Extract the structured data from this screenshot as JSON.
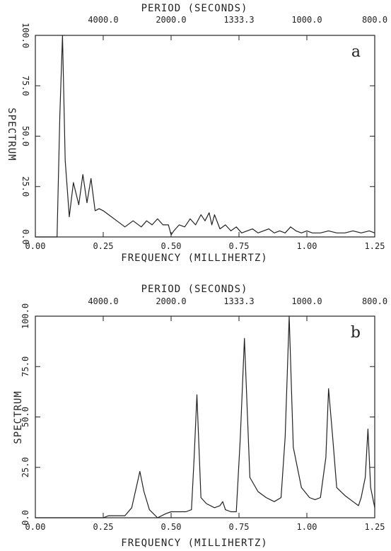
{
  "chart_data": [
    {
      "type": "line",
      "panel_label": "a",
      "xlabel": "FREQUENCY (MILLIHERTZ)",
      "ylabel": "SPECTRUM",
      "top_axis_label": "PERIOD (SECONDS)",
      "xlim": [
        0.0,
        1.25
      ],
      "ylim": [
        0.0,
        100.0
      ],
      "xticks": [
        0.0,
        0.25,
        0.5,
        0.75,
        1.0,
        1.25
      ],
      "xtick_labels": [
        "0.00",
        "0.25",
        "0.50",
        "0.75",
        "1.00",
        "1.25"
      ],
      "yticks": [
        0.0,
        25.0,
        50.0,
        75.0,
        100.0
      ],
      "ytick_labels": [
        "0.0",
        "25.0",
        "50.0",
        "75.0",
        "100.0"
      ],
      "period_ticks": [
        4000.0,
        2000.0,
        1333.3,
        1000.0,
        800.0
      ],
      "period_tick_labels": [
        "4000.0",
        "2000.0",
        "1333.3",
        "1000.0",
        "800.0"
      ],
      "grid": false,
      "series": [
        {
          "x": [
            0.0,
            0.08,
            0.09,
            0.1,
            0.11,
            0.125,
            0.14,
            0.16,
            0.175,
            0.19,
            0.205,
            0.22,
            0.235,
            0.25,
            0.27,
            0.3,
            0.33,
            0.36,
            0.39,
            0.41,
            0.43,
            0.45,
            0.47,
            0.49,
            0.5,
            0.51,
            0.53,
            0.55,
            0.57,
            0.59,
            0.61,
            0.625,
            0.64,
            0.65,
            0.66,
            0.68,
            0.7,
            0.72,
            0.74,
            0.76,
            0.78,
            0.8,
            0.82,
            0.84,
            0.86,
            0.88,
            0.9,
            0.92,
            0.94,
            0.96,
            0.98,
            1.0,
            1.02,
            1.05,
            1.08,
            1.11,
            1.14,
            1.17,
            1.2,
            1.23,
            1.25
          ],
          "y": [
            0.0,
            0.0,
            60.0,
            100.0,
            38.0,
            10.0,
            27.0,
            16.0,
            31.0,
            17.0,
            29.0,
            13.0,
            14.0,
            13.0,
            11.0,
            8.0,
            5.0,
            8.0,
            5.0,
            8.0,
            6.0,
            9.0,
            6.0,
            6.0,
            1.0,
            3.0,
            6.0,
            5.0,
            9.0,
            6.0,
            11.0,
            8.0,
            12.0,
            6.0,
            11.0,
            4.0,
            6.0,
            3.0,
            5.0,
            2.0,
            3.0,
            4.0,
            2.0,
            3.0,
            4.0,
            2.0,
            3.0,
            2.0,
            5.0,
            3.0,
            2.0,
            3.0,
            2.0,
            2.0,
            3.0,
            2.0,
            2.0,
            3.0,
            2.0,
            3.0,
            2.0
          ]
        }
      ]
    },
    {
      "type": "line",
      "panel_label": "b",
      "xlabel": "FREQUENCY (MILLIHERTZ)",
      "ylabel": "SPECTRUM",
      "top_axis_label": "PERIOD (SECONDS)",
      "xlim": [
        0.0,
        1.25
      ],
      "ylim": [
        0.0,
        100.0
      ],
      "xticks": [
        0.0,
        0.25,
        0.5,
        0.75,
        1.0,
        1.25
      ],
      "xtick_labels": [
        "0.00",
        "0.25",
        "0.50",
        "0.75",
        "1.00",
        "1.25"
      ],
      "yticks": [
        0.0,
        25.0,
        50.0,
        75.0,
        100.0
      ],
      "ytick_labels": [
        "0.0",
        "25.0",
        "50.0",
        "75.0",
        "100.0"
      ],
      "period_ticks": [
        4000.0,
        2000.0,
        1333.3,
        1000.0,
        800.0
      ],
      "period_tick_labels": [
        "4000.0",
        "2000.0",
        "1333.3",
        "1000.0",
        "800.0"
      ],
      "grid": false,
      "series": [
        {
          "x": [
            0.0,
            0.25,
            0.27,
            0.3,
            0.33,
            0.355,
            0.37,
            0.385,
            0.4,
            0.42,
            0.45,
            0.48,
            0.5,
            0.53,
            0.555,
            0.575,
            0.585,
            0.595,
            0.61,
            0.63,
            0.66,
            0.68,
            0.69,
            0.7,
            0.72,
            0.74,
            0.755,
            0.77,
            0.79,
            0.82,
            0.85,
            0.88,
            0.905,
            0.92,
            0.935,
            0.95,
            0.98,
            1.01,
            1.03,
            1.05,
            1.07,
            1.08,
            1.095,
            1.11,
            1.14,
            1.17,
            1.19,
            1.2,
            1.215,
            1.225,
            1.235,
            1.25
          ],
          "y": [
            0.0,
            0.0,
            1.0,
            1.0,
            1.0,
            5.0,
            14.0,
            23.0,
            13.0,
            4.0,
            0.0,
            2.0,
            3.0,
            3.0,
            3.0,
            4.0,
            30.0,
            61.0,
            10.0,
            7.0,
            5.0,
            6.0,
            8.0,
            4.0,
            3.0,
            3.0,
            40.0,
            89.0,
            20.0,
            13.0,
            10.0,
            8.0,
            10.0,
            40.0,
            100.0,
            35.0,
            15.0,
            10.0,
            9.0,
            10.0,
            30.0,
            64.0,
            40.0,
            15.0,
            11.0,
            8.0,
            6.0,
            10.0,
            20.0,
            44.0,
            15.0,
            5.0
          ]
        }
      ]
    }
  ]
}
